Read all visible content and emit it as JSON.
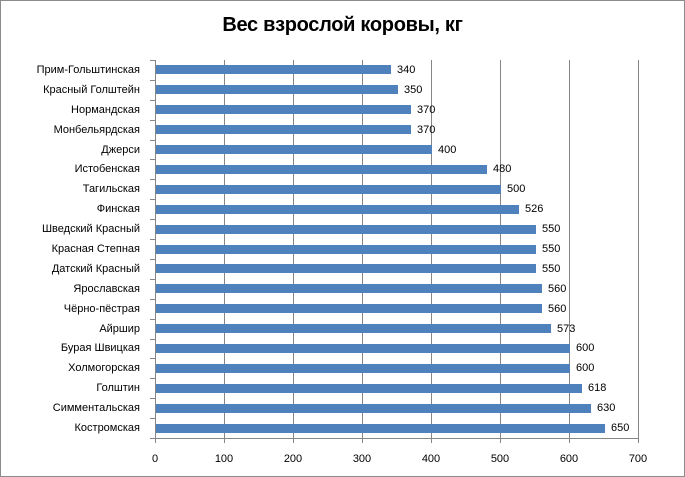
{
  "chart_data": {
    "type": "bar",
    "orientation": "horizontal",
    "title": "Вес взрослой коровы, кг",
    "xlabel": "",
    "ylabel": "",
    "categories": [
      "Прим-Гольштинская",
      "Красный Голштейн",
      "Нормандская",
      "Монбельярдская",
      "Джерси",
      "Истобенская",
      "Тагильская",
      "Финская",
      "Шведский Красный",
      "Красная Степная",
      "Датский Красный",
      "Ярославская",
      "Чёрно-пёстрая",
      "Айршир",
      "Бурая Швицкая",
      "Холмогорская",
      "Голштин",
      "Симментальская",
      "Костромская"
    ],
    "values": [
      340,
      350,
      370,
      370,
      400,
      480,
      500,
      526,
      550,
      550,
      550,
      560,
      560,
      573,
      600,
      600,
      618,
      630,
      650
    ],
    "value_labels": [
      "340",
      "350",
      "370",
      "370",
      "400",
      "480",
      "500",
      "526",
      "550",
      "550",
      "550",
      "560",
      "560",
      "573",
      "600",
      "600",
      "618",
      "630",
      "650"
    ],
    "xlim": [
      0,
      700
    ],
    "xticks": [
      "0",
      "100",
      "200",
      "300",
      "400",
      "500",
      "600",
      "700"
    ],
    "grid": true,
    "legend": null,
    "bar_color": "#4f81bd"
  }
}
